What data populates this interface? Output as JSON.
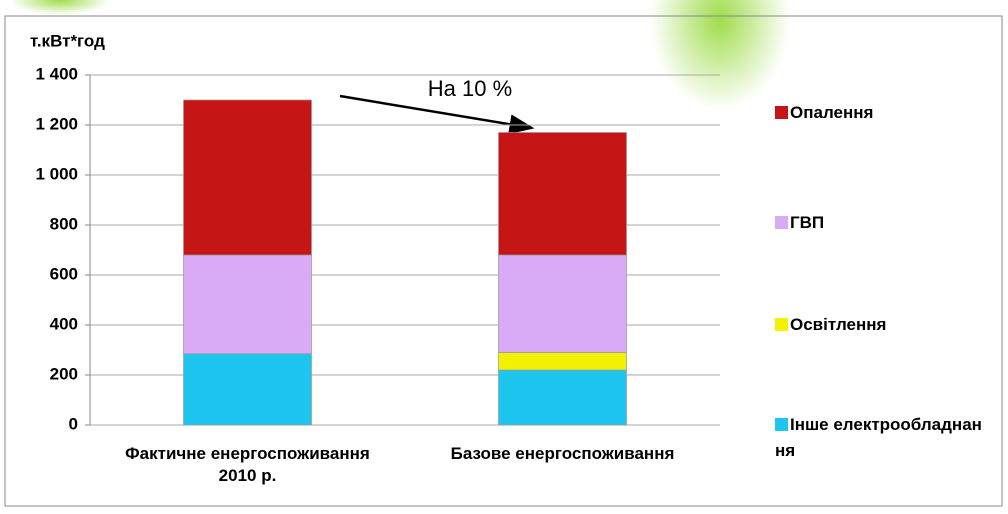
{
  "chart_data": {
    "type": "stacked-bar",
    "ylabel": "т.кВт*год",
    "categories": [
      "Фактичне енергоспоживання 2010 р.",
      "Базове енергоспоживання"
    ],
    "series": [
      {
        "name": "Інше електрообладнання",
        "color": "#1ec6ef",
        "values": [
          285,
          220
        ]
      },
      {
        "name": "Освітлення",
        "color": "#f2f200",
        "values": [
          0,
          70
        ]
      },
      {
        "name": "ГВП",
        "color": "#d9abf7",
        "values": [
          395,
          390
        ]
      },
      {
        "name": "Опалення",
        "color": "#c51515",
        "values": [
          620,
          490
        ]
      }
    ],
    "annotation": "На 10 %",
    "ylim": [
      0,
      1400
    ],
    "yticks": [
      0,
      200,
      400,
      600,
      800,
      {
        "value": 1000,
        "label": "1 000"
      },
      {
        "value": 1200,
        "label": "1 200"
      },
      {
        "value": 1400,
        "label": "1 400"
      }
    ],
    "grid": true,
    "legend": "right"
  }
}
